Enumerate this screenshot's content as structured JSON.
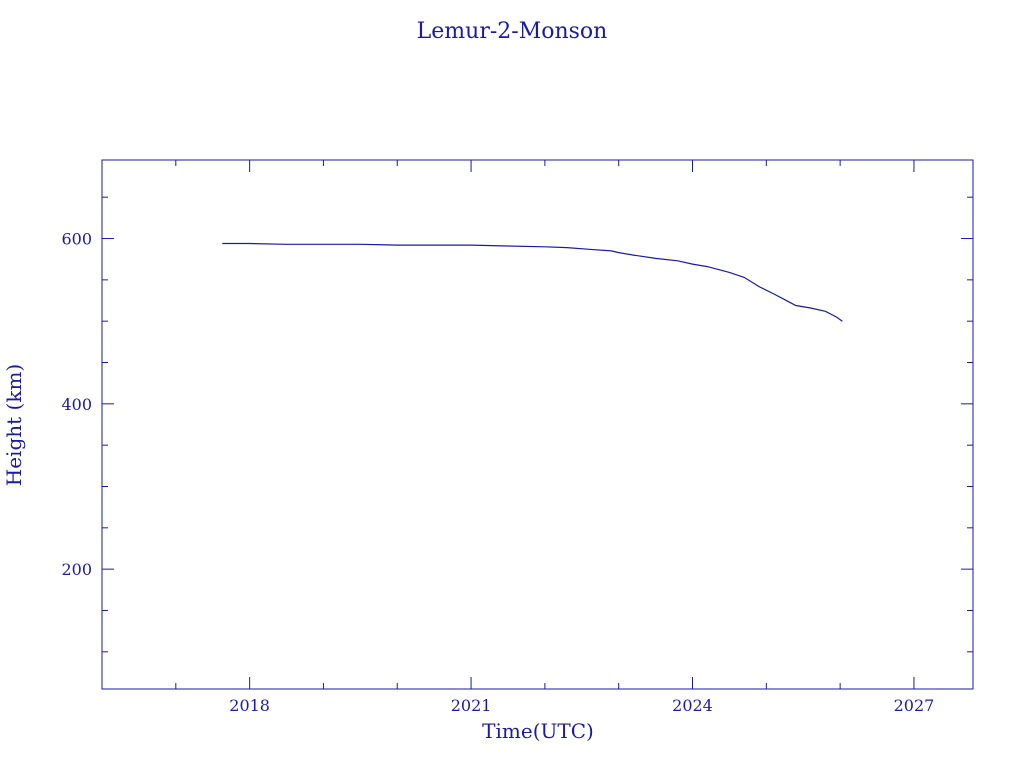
{
  "chart_data": {
    "type": "line",
    "title": "Lemur-2-Monson",
    "xlabel": "Time(UTC)",
    "ylabel": "Height (km)",
    "xlim": [
      2016.0,
      2027.8
    ],
    "ylim": [
      55,
      695
    ],
    "x_ticks": [
      2018,
      2021,
      2024,
      2027
    ],
    "y_ticks": [
      200,
      400,
      600
    ],
    "grid": false,
    "color": "#1a1aa6",
    "series": [
      {
        "x": [
          2017.63,
          2018.0,
          2018.5,
          2019.0,
          2019.5,
          2020.0,
          2020.5,
          2021.0,
          2021.5,
          2022.0,
          2022.3,
          2022.6,
          2022.9,
          2023.0,
          2023.2,
          2023.5,
          2023.8,
          2024.0,
          2024.2,
          2024.5,
          2024.7,
          2024.9,
          2025.1,
          2025.25,
          2025.4,
          2025.6,
          2025.8,
          2025.95,
          2026.03
        ],
        "y": [
          594,
          594,
          593,
          593,
          593,
          592,
          592,
          592,
          591,
          590,
          589,
          587,
          585,
          583,
          580,
          576,
          573,
          569,
          566,
          559,
          553,
          542,
          533,
          526,
          519,
          516,
          512,
          505,
          500
        ]
      }
    ]
  }
}
